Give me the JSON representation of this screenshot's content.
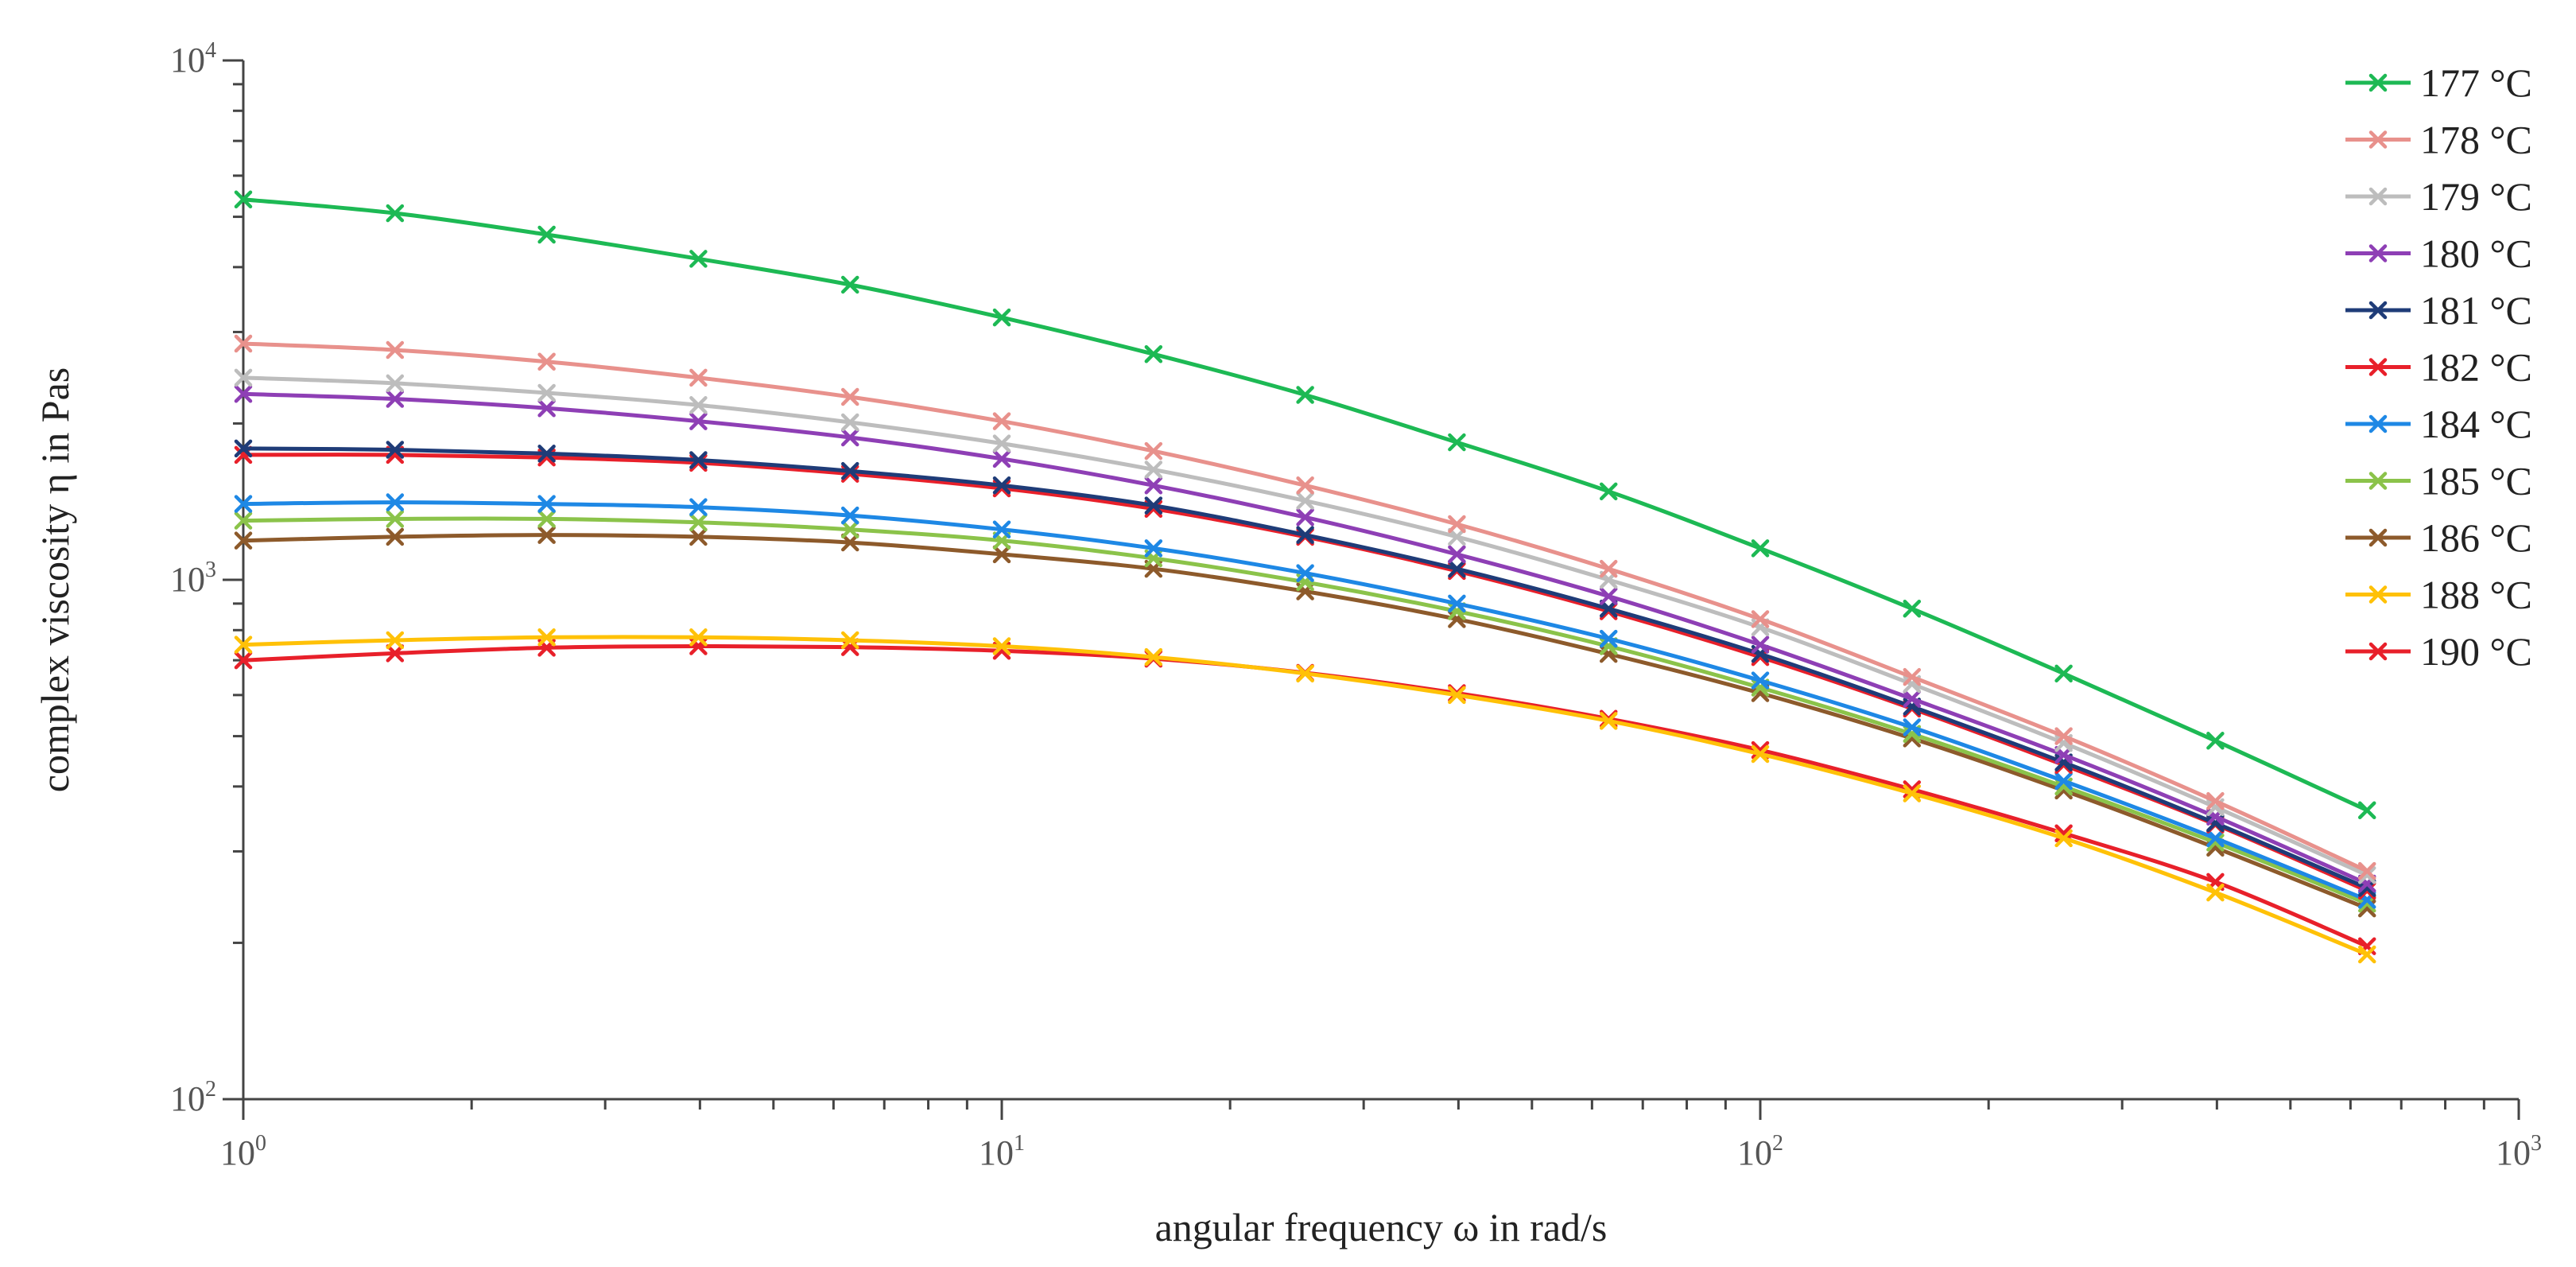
{
  "chart_data": {
    "type": "line",
    "title": "",
    "xlabel": "angular frequency ω  in rad/s",
    "ylabel": "complex viscosity η  in Pas",
    "xscale": "log",
    "yscale": "log",
    "xlim": [
      1,
      1000
    ],
    "ylim": [
      100,
      10000
    ],
    "x_major_ticks": [
      {
        "base": "10",
        "exp": "0",
        "value": 1
      },
      {
        "base": "10",
        "exp": "1",
        "value": 10
      },
      {
        "base": "10",
        "exp": "2",
        "value": 100
      },
      {
        "base": "10",
        "exp": "3",
        "value": 1000
      }
    ],
    "y_major_ticks": [
      {
        "base": "10",
        "exp": "2",
        "value": 100
      },
      {
        "base": "10",
        "exp": "3",
        "value": 1000
      },
      {
        "base": "10",
        "exp": "4",
        "value": 10000
      }
    ],
    "legend_position": "right",
    "x": [
      1,
      1.585,
      2.512,
      3.981,
      6.31,
      10,
      15.85,
      25.12,
      39.81,
      63.1,
      100,
      158.5,
      251.2,
      398.1,
      631
    ],
    "series": [
      {
        "name": "177 °C",
        "color": "#1DB954",
        "values": [
          5400,
          5080,
          4620,
          4150,
          3700,
          3200,
          2720,
          2270,
          1840,
          1480,
          1150,
          880,
          660,
          490,
          360
        ]
      },
      {
        "name": "178 °C",
        "color": "#E8918C",
        "values": [
          2850,
          2770,
          2630,
          2450,
          2250,
          2020,
          1770,
          1520,
          1280,
          1050,
          840,
          650,
          500,
          375,
          275
        ]
      },
      {
        "name": "179 °C",
        "color": "#BDBDBD",
        "values": [
          2450,
          2390,
          2290,
          2170,
          2010,
          1830,
          1630,
          1420,
          1210,
          1000,
          810,
          630,
          485,
          365,
          270
        ]
      },
      {
        "name": "180 °C",
        "color": "#8E3FB5",
        "values": [
          2280,
          2230,
          2140,
          2020,
          1880,
          1710,
          1520,
          1320,
          1120,
          930,
          750,
          590,
          460,
          350,
          260
        ]
      },
      {
        "name": "181 °C",
        "color": "#1F3C78",
        "values": [
          1790,
          1780,
          1750,
          1700,
          1620,
          1520,
          1390,
          1220,
          1050,
          880,
          720,
          570,
          445,
          340,
          255
        ]
      },
      {
        "name": "182 °C",
        "color": "#E8202A",
        "values": [
          1740,
          1740,
          1720,
          1680,
          1600,
          1500,
          1370,
          1210,
          1040,
          870,
          710,
          565,
          440,
          338,
          252
        ]
      },
      {
        "name": "184 °C",
        "color": "#1E88E5",
        "values": [
          1400,
          1410,
          1400,
          1380,
          1330,
          1250,
          1150,
          1030,
          900,
          770,
          640,
          520,
          410,
          318,
          242
        ]
      },
      {
        "name": "185 °C",
        "color": "#8BC34A",
        "values": [
          1300,
          1310,
          1310,
          1290,
          1250,
          1190,
          1100,
          990,
          870,
          745,
          620,
          505,
          400,
          312,
          238
        ]
      },
      {
        "name": "186 °C",
        "color": "#8D5A2B",
        "values": [
          1190,
          1210,
          1220,
          1210,
          1180,
          1120,
          1050,
          950,
          840,
          720,
          605,
          495,
          393,
          305,
          233
        ]
      },
      {
        "name": "188 °C",
        "color": "#FFC107",
        "values": [
          750,
          765,
          775,
          775,
          765,
          745,
          710,
          660,
          600,
          535,
          462,
          388,
          318,
          250,
          190
        ]
      },
      {
        "name": "190 °C",
        "color": "#E8202A",
        "values": [
          700,
          722,
          740,
          745,
          742,
          730,
          705,
          662,
          605,
          540,
          470,
          395,
          325,
          262,
          197
        ]
      }
    ]
  }
}
